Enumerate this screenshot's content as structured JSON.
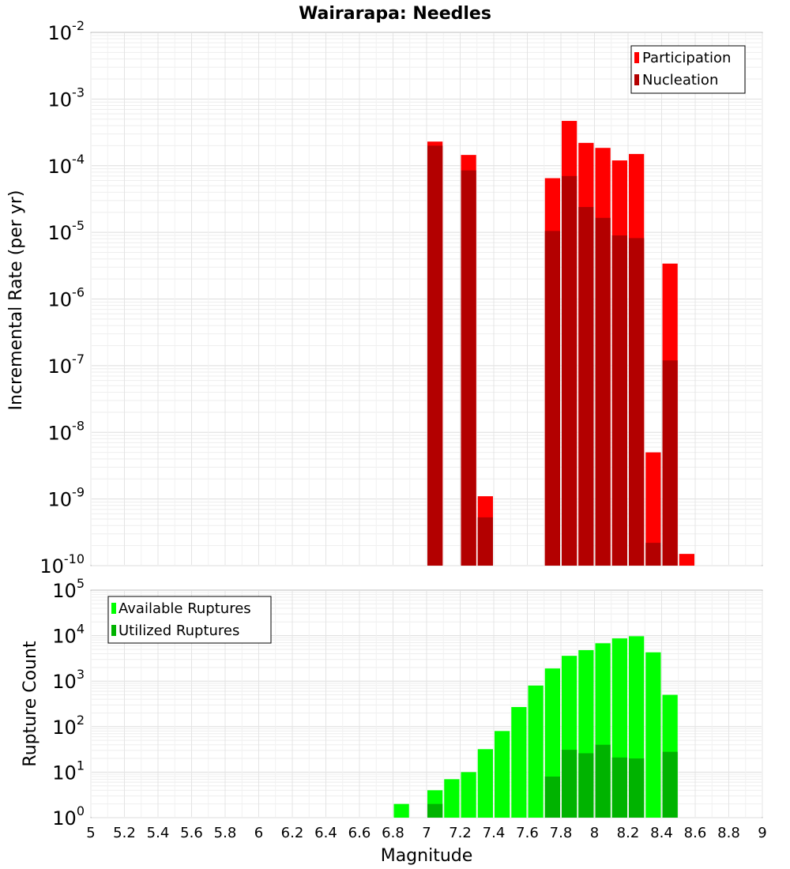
{
  "chart_data": [
    {
      "type": "bar",
      "title": "Wairarapa: Needles",
      "xlabel": "Magnitude",
      "ylabel": "Incremental Rate (per yr)",
      "yscale": "log",
      "xlim": [
        5,
        9
      ],
      "ylim_exp": [
        -10,
        -2
      ],
      "legend": {
        "position": "top-right",
        "entries": [
          {
            "name": "Participation",
            "color": "#ff0000"
          },
          {
            "name": "Nucleation",
            "color": "#b30000"
          }
        ]
      },
      "bin_width": 0.1,
      "series": [
        {
          "name": "Participation",
          "color": "#ff0000",
          "points": [
            {
              "x": 7.05,
              "y": 0.00023
            },
            {
              "x": 7.25,
              "y": 0.000145
            },
            {
              "x": 7.35,
              "y": 1.1e-09
            },
            {
              "x": 7.75,
              "y": 6.5e-05
            },
            {
              "x": 7.85,
              "y": 0.00047
            },
            {
              "x": 7.95,
              "y": 0.00022
            },
            {
              "x": 8.05,
              "y": 0.000185
            },
            {
              "x": 8.15,
              "y": 0.00012
            },
            {
              "x": 8.25,
              "y": 0.00015
            },
            {
              "x": 8.35,
              "y": 5e-09
            },
            {
              "x": 8.45,
              "y": 3.4e-06
            },
            {
              "x": 8.55,
              "y": 1.5e-10
            }
          ]
        },
        {
          "name": "Nucleation",
          "color": "#b30000",
          "points": [
            {
              "x": 7.05,
              "y": 0.0002
            },
            {
              "x": 7.25,
              "y": 8.5e-05
            },
            {
              "x": 7.35,
              "y": 5.3e-10
            },
            {
              "x": 7.75,
              "y": 1.05e-05
            },
            {
              "x": 7.85,
              "y": 7e-05
            },
            {
              "x": 7.95,
              "y": 2.4e-05
            },
            {
              "x": 8.05,
              "y": 1.65e-05
            },
            {
              "x": 8.15,
              "y": 9e-06
            },
            {
              "x": 8.25,
              "y": 8.2e-06
            },
            {
              "x": 8.35,
              "y": 2.2e-10
            },
            {
              "x": 8.45,
              "y": 1.2e-07
            }
          ]
        }
      ]
    },
    {
      "type": "bar",
      "title": "",
      "xlabel": "Magnitude",
      "ylabel": "Rupture Count",
      "yscale": "log",
      "xlim": [
        5,
        9
      ],
      "ylim_exp": [
        0,
        5
      ],
      "legend": {
        "position": "top-left",
        "entries": [
          {
            "name": "Available Ruptures",
            "color": "#00ff00"
          },
          {
            "name": "Utilized Ruptures",
            "color": "#00b300"
          }
        ]
      },
      "bin_width": 0.1,
      "series": [
        {
          "name": "Available Ruptures",
          "color": "#00ff00",
          "points": [
            {
              "x": 6.85,
              "y": 2
            },
            {
              "x": 6.95,
              "y": 1
            },
            {
              "x": 7.05,
              "y": 4
            },
            {
              "x": 7.15,
              "y": 7
            },
            {
              "x": 7.25,
              "y": 10
            },
            {
              "x": 7.35,
              "y": 32
            },
            {
              "x": 7.45,
              "y": 80
            },
            {
              "x": 7.55,
              "y": 270
            },
            {
              "x": 7.65,
              "y": 800
            },
            {
              "x": 7.75,
              "y": 1900
            },
            {
              "x": 7.85,
              "y": 3600
            },
            {
              "x": 7.95,
              "y": 4800
            },
            {
              "x": 8.05,
              "y": 6800
            },
            {
              "x": 8.15,
              "y": 8700
            },
            {
              "x": 8.25,
              "y": 9700
            },
            {
              "x": 8.35,
              "y": 4300
            },
            {
              "x": 8.45,
              "y": 500
            },
            {
              "x": 8.55,
              "y": 1
            }
          ]
        },
        {
          "name": "Utilized Ruptures",
          "color": "#00b300",
          "points": [
            {
              "x": 7.05,
              "y": 2
            },
            {
              "x": 7.25,
              "y": 1
            },
            {
              "x": 7.35,
              "y": 1
            },
            {
              "x": 7.75,
              "y": 8
            },
            {
              "x": 7.85,
              "y": 31
            },
            {
              "x": 7.95,
              "y": 26
            },
            {
              "x": 8.05,
              "y": 40
            },
            {
              "x": 8.15,
              "y": 21
            },
            {
              "x": 8.25,
              "y": 20
            },
            {
              "x": 8.35,
              "y": 1
            },
            {
              "x": 8.45,
              "y": 28
            },
            {
              "x": 8.55,
              "y": 1
            }
          ]
        }
      ]
    }
  ],
  "x_ticks": [
    "5",
    "5.2",
    "5.4",
    "5.6",
    "5.8",
    "6",
    "6.2",
    "6.4",
    "6.6",
    "6.8",
    "7",
    "7.2",
    "7.4",
    "7.6",
    "7.8",
    "8",
    "8.2",
    "8.4",
    "8.6",
    "8.8",
    "9"
  ]
}
